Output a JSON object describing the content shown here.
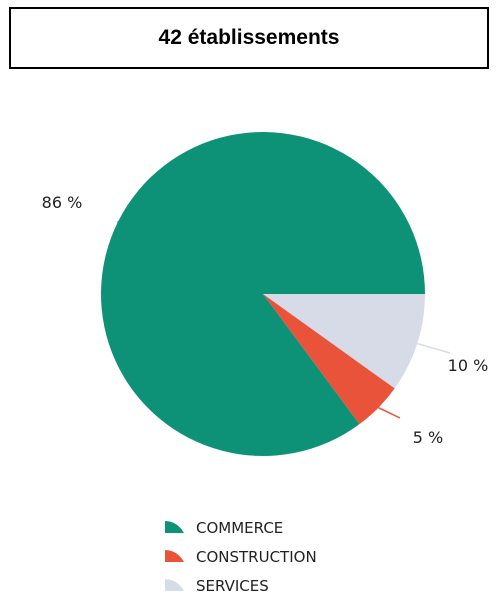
{
  "title": "42 établissements",
  "chart_data": {
    "type": "pie",
    "title": "42 établissements",
    "slices": [
      {
        "name": "COMMERCE",
        "value": 86,
        "label": "86 %",
        "color": "#0e9277"
      },
      {
        "name": "CONSTRUCTION",
        "value": 5,
        "label": "5 %",
        "color": "#e8533a"
      },
      {
        "name": "SERVICES",
        "value": 10,
        "label": "10 %",
        "color": "#d7dbe7"
      }
    ],
    "legend": "bottom"
  }
}
